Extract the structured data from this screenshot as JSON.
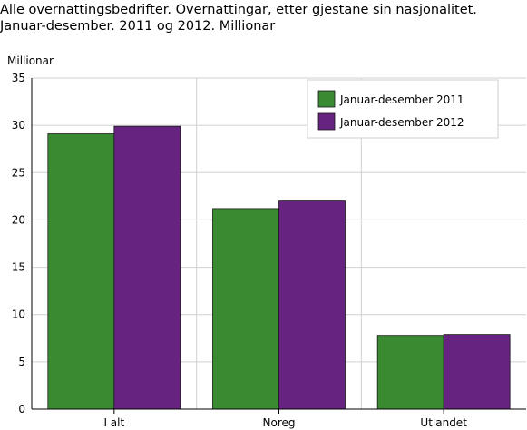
{
  "chart_data": {
    "type": "bar",
    "title_lines": [
      "Alle overnattingsbedrifter. Overnattingar, etter gjestane sin nasjonalitet.",
      "Januar-desember. 2011 og 2012. Millionar"
    ],
    "ylabel": "Millionar",
    "xlabel": "",
    "ylim": [
      0,
      35
    ],
    "yticks": [
      0,
      5,
      10,
      15,
      20,
      25,
      30,
      35
    ],
    "categories": [
      "I alt",
      "Noreg",
      "Utlandet"
    ],
    "series": [
      {
        "name": "Januar-desember 2011",
        "color": "#3a8a32",
        "values": [
          29.1,
          21.2,
          7.8
        ]
      },
      {
        "name": "Januar-desember 2012",
        "color": "#66237f",
        "values": [
          29.9,
          22.0,
          7.9
        ]
      }
    ],
    "grid": true,
    "legend_position": "top-right"
  }
}
